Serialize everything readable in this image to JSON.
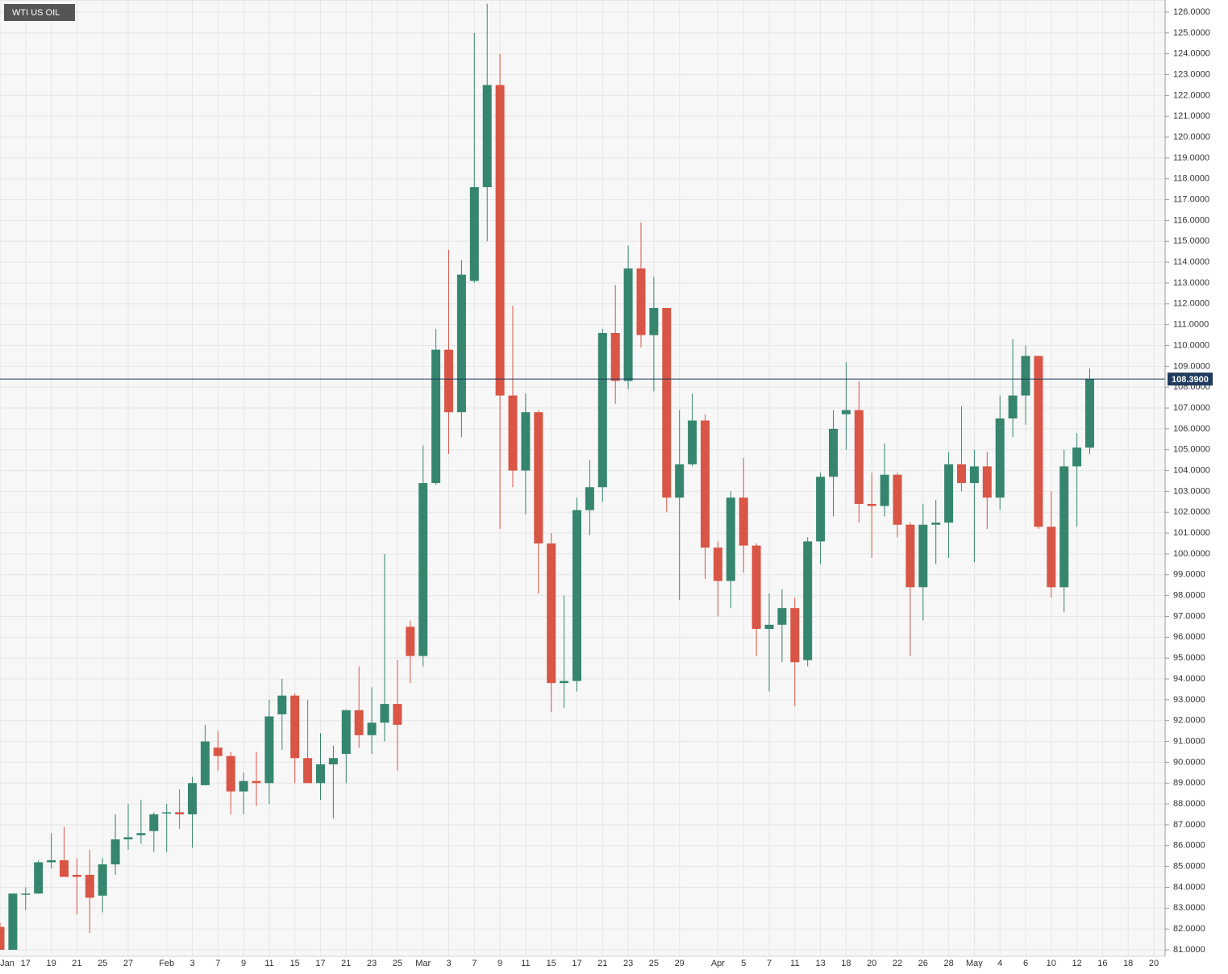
{
  "chart_data": {
    "type": "candlestick",
    "title": "WTI US OIL",
    "categories": [
      "Jan",
      null,
      "17",
      null,
      "19",
      null,
      "21",
      null,
      "25",
      null,
      "27",
      null,
      null,
      "Feb",
      null,
      "3",
      null,
      "7",
      null,
      "9",
      null,
      "11",
      null,
      "15",
      null,
      "17",
      null,
      "21",
      null,
      "23",
      null,
      "25",
      null,
      "Mar",
      null,
      "3",
      null,
      "7",
      null,
      "9",
      null,
      "11",
      null,
      "15",
      null,
      "17",
      null,
      "21",
      null,
      "23",
      null,
      "25",
      null,
      "29",
      null,
      null,
      "Apr",
      null,
      "5",
      null,
      "7",
      null,
      "11",
      null,
      "13",
      null,
      "18",
      null,
      "20",
      null,
      "22",
      null,
      "26",
      null,
      "28",
      null,
      "May",
      null,
      "4",
      null,
      "6",
      null,
      "10",
      null,
      "12",
      null,
      "16",
      null,
      "18",
      null,
      "20"
    ],
    "open": [
      82.1,
      81.0,
      83.65,
      83.7,
      85.2,
      85.3,
      84.6,
      84.6,
      83.6,
      85.1,
      86.3,
      86.5,
      86.7,
      87.55,
      87.6,
      87.5,
      88.9,
      90.7,
      90.3,
      88.6,
      89.1,
      89.0,
      92.3,
      93.2,
      90.2,
      89.0,
      89.9,
      90.4,
      92.5,
      91.3,
      91.9,
      92.8,
      96.5,
      95.1,
      103.4,
      109.8,
      106.8,
      113.1,
      117.6,
      122.5,
      107.6,
      104.0,
      106.8,
      100.5,
      93.8,
      93.9,
      102.1,
      103.2,
      110.6,
      108.3,
      113.7,
      110.5,
      111.8,
      102.7,
      104.3,
      106.4,
      100.3,
      98.7,
      102.7,
      100.4,
      96.4,
      96.6,
      97.4,
      94.9,
      100.6,
      103.7,
      106.7,
      106.9,
      102.4,
      102.3,
      103.8,
      101.4,
      98.4,
      101.4,
      101.5,
      104.3,
      103.4,
      104.2,
      102.7,
      106.5,
      107.6,
      109.5,
      101.3,
      98.4,
      104.2,
      105.1,
      null,
      null,
      null,
      null,
      null
    ],
    "high": [
      82.3,
      83.7,
      84.0,
      85.3,
      86.6,
      86.9,
      85.4,
      85.8,
      85.4,
      87.5,
      88.0,
      88.2,
      87.6,
      88.0,
      88.7,
      89.3,
      91.8,
      91.5,
      90.5,
      89.5,
      90.5,
      93.0,
      94.0,
      93.3,
      93.0,
      91.4,
      90.8,
      92.5,
      94.6,
      93.6,
      100.0,
      94.9,
      96.8,
      105.2,
      110.8,
      114.6,
      114.1,
      125.0,
      126.4,
      124.0,
      111.9,
      107.7,
      106.9,
      101.0,
      98.0,
      102.7,
      104.5,
      110.8,
      112.9,
      114.8,
      115.9,
      113.3,
      111.8,
      106.9,
      107.7,
      106.7,
      100.6,
      103.0,
      104.6,
      100.5,
      98.1,
      98.3,
      97.9,
      100.8,
      103.9,
      106.9,
      109.2,
      108.3,
      103.9,
      105.3,
      103.9,
      101.5,
      102.4,
      102.6,
      104.9,
      107.1,
      105.0,
      104.9,
      107.6,
      110.3,
      110.0,
      109.5,
      103.0,
      105.0,
      105.8,
      108.9,
      null,
      null,
      null,
      null,
      null
    ],
    "low": [
      81.0,
      81.0,
      82.9,
      83.7,
      84.9,
      84.5,
      82.7,
      81.8,
      82.8,
      84.6,
      85.8,
      86.1,
      85.7,
      85.7,
      86.8,
      85.9,
      88.9,
      89.6,
      87.5,
      87.5,
      87.9,
      88.0,
      90.6,
      89.0,
      89.0,
      88.2,
      87.3,
      89.0,
      90.7,
      90.4,
      91.0,
      89.6,
      93.8,
      94.6,
      103.3,
      104.8,
      105.6,
      113.0,
      115.0,
      101.2,
      103.2,
      101.9,
      98.1,
      92.4,
      92.6,
      93.4,
      100.9,
      102.5,
      107.2,
      107.9,
      109.9,
      107.8,
      102.0,
      97.8,
      104.2,
      98.8,
      97.0,
      97.4,
      99.1,
      95.1,
      93.4,
      94.8,
      92.7,
      94.6,
      99.5,
      101.8,
      105.0,
      101.5,
      99.8,
      101.8,
      100.8,
      95.1,
      96.8,
      99.5,
      99.8,
      103.0,
      99.6,
      101.2,
      102.1,
      105.6,
      106.2,
      101.2,
      97.9,
      97.2,
      101.3,
      104.8,
      null,
      null,
      null,
      null,
      null
    ],
    "close": [
      81.0,
      83.7,
      83.7,
      85.2,
      85.3,
      84.5,
      84.5,
      83.5,
      85.1,
      86.3,
      86.4,
      86.6,
      87.5,
      87.6,
      87.5,
      89.0,
      91.0,
      90.3,
      88.6,
      89.1,
      89.0,
      92.2,
      93.2,
      90.2,
      89.0,
      89.9,
      90.2,
      92.5,
      91.3,
      91.9,
      92.8,
      91.8,
      95.1,
      103.4,
      109.8,
      106.8,
      113.4,
      117.6,
      122.5,
      107.6,
      104.0,
      106.8,
      100.5,
      93.8,
      93.9,
      102.1,
      103.2,
      110.6,
      108.3,
      113.7,
      110.5,
      111.8,
      102.7,
      104.3,
      106.4,
      100.3,
      98.7,
      102.7,
      100.4,
      96.4,
      96.6,
      97.4,
      94.8,
      100.6,
      103.7,
      106.0,
      106.9,
      102.4,
      102.3,
      103.8,
      101.4,
      98.4,
      101.4,
      101.5,
      104.3,
      103.4,
      104.2,
      102.7,
      106.5,
      107.6,
      109.5,
      101.3,
      98.4,
      104.2,
      105.1,
      108.39,
      null,
      null,
      null,
      null,
      null
    ],
    "up_color": "#36866f",
    "down_color": "#d95545",
    "last": 108.39,
    "last_label": "108.3900",
    "last_color": "#1f3b5e",
    "ylim": [
      81,
      126
    ],
    "yticks": [
      {
        "value": 81,
        "label": "81.0000"
      },
      {
        "value": 82,
        "label": "82.0000"
      },
      {
        "value": 83,
        "label": "83.0000"
      },
      {
        "value": 84,
        "label": "84.0000"
      },
      {
        "value": 85,
        "label": "85.0000"
      },
      {
        "value": 86,
        "label": "86.0000"
      },
      {
        "value": 87,
        "label": "87.0000"
      },
      {
        "value": 88,
        "label": "88.0000"
      },
      {
        "value": 89,
        "label": "89.0000"
      },
      {
        "value": 90,
        "label": "90.0000"
      },
      {
        "value": 91,
        "label": "91.0000"
      },
      {
        "value": 92,
        "label": "92.0000"
      },
      {
        "value": 93,
        "label": "93.0000"
      },
      {
        "value": 94,
        "label": "94.0000"
      },
      {
        "value": 95,
        "label": "95.0000"
      },
      {
        "value": 96,
        "label": "96.0000"
      },
      {
        "value": 97,
        "label": "97.0000"
      },
      {
        "value": 98,
        "label": "98.0000"
      },
      {
        "value": 99,
        "label": "99.0000"
      },
      {
        "value": 100,
        "label": "100.0000"
      },
      {
        "value": 101,
        "label": "101.0000"
      },
      {
        "value": 102,
        "label": "102.0000"
      },
      {
        "value": 103,
        "label": "103.0000"
      },
      {
        "value": 104,
        "label": "104.0000"
      },
      {
        "value": 105,
        "label": "105.0000"
      },
      {
        "value": 106,
        "label": "106.0000"
      },
      {
        "value": 107,
        "label": "107.0000"
      },
      {
        "value": 108,
        "label": "108.0000"
      },
      {
        "value": 109,
        "label": "109.0000"
      },
      {
        "value": 110,
        "label": "110.0000"
      },
      {
        "value": 111,
        "label": "111.0000"
      },
      {
        "value": 112,
        "label": "112.0000"
      },
      {
        "value": 113,
        "label": "113.0000"
      },
      {
        "value": 114,
        "label": "114.0000"
      },
      {
        "value": 115,
        "label": "115.0000"
      },
      {
        "value": 116,
        "label": "116.0000"
      },
      {
        "value": 117,
        "label": "117.0000"
      },
      {
        "value": 118,
        "label": "118.0000"
      },
      {
        "value": 119,
        "label": "119.0000"
      },
      {
        "value": 120,
        "label": "120.0000"
      },
      {
        "value": 121,
        "label": "121.0000"
      },
      {
        "value": 122,
        "label": "122.0000"
      },
      {
        "value": 123,
        "label": "123.0000"
      },
      {
        "value": 124,
        "label": "124.0000"
      },
      {
        "value": 125,
        "label": "125.0000"
      },
      {
        "value": 126,
        "label": "126.0000"
      }
    ],
    "grid": true
  }
}
